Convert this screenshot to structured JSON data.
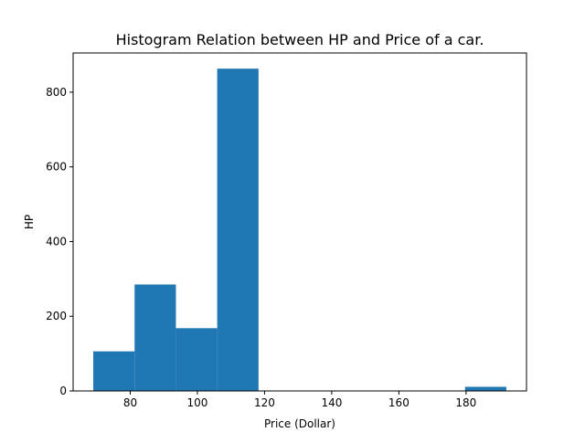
{
  "chart_data": {
    "type": "bar",
    "title": "Histogram Relation between HP and Price of a car.",
    "xlabel": "Price (Dollar)",
    "ylabel": "HP",
    "xlim": [
      63,
      198
    ],
    "ylim": [
      0,
      905
    ],
    "xticks": [
      80,
      100,
      120,
      140,
      160,
      180
    ],
    "yticks": [
      0,
      200,
      400,
      600,
      800
    ],
    "grid": false,
    "color": "#1f77b4",
    "bins": [
      {
        "x0": 69,
        "x1": 81.3,
        "value": 106
      },
      {
        "x0": 81.3,
        "x1": 93.6,
        "value": 285
      },
      {
        "x0": 93.6,
        "x1": 105.9,
        "value": 168
      },
      {
        "x0": 105.9,
        "x1": 118.2,
        "value": 863
      },
      {
        "x0": 118.2,
        "x1": 130.5,
        "value": 0
      },
      {
        "x0": 130.5,
        "x1": 142.8,
        "value": 0
      },
      {
        "x0": 142.8,
        "x1": 155.1,
        "value": 0
      },
      {
        "x0": 155.1,
        "x1": 167.4,
        "value": 0
      },
      {
        "x0": 167.4,
        "x1": 179.7,
        "value": 0
      },
      {
        "x0": 179.7,
        "x1": 192,
        "value": 11
      }
    ]
  }
}
